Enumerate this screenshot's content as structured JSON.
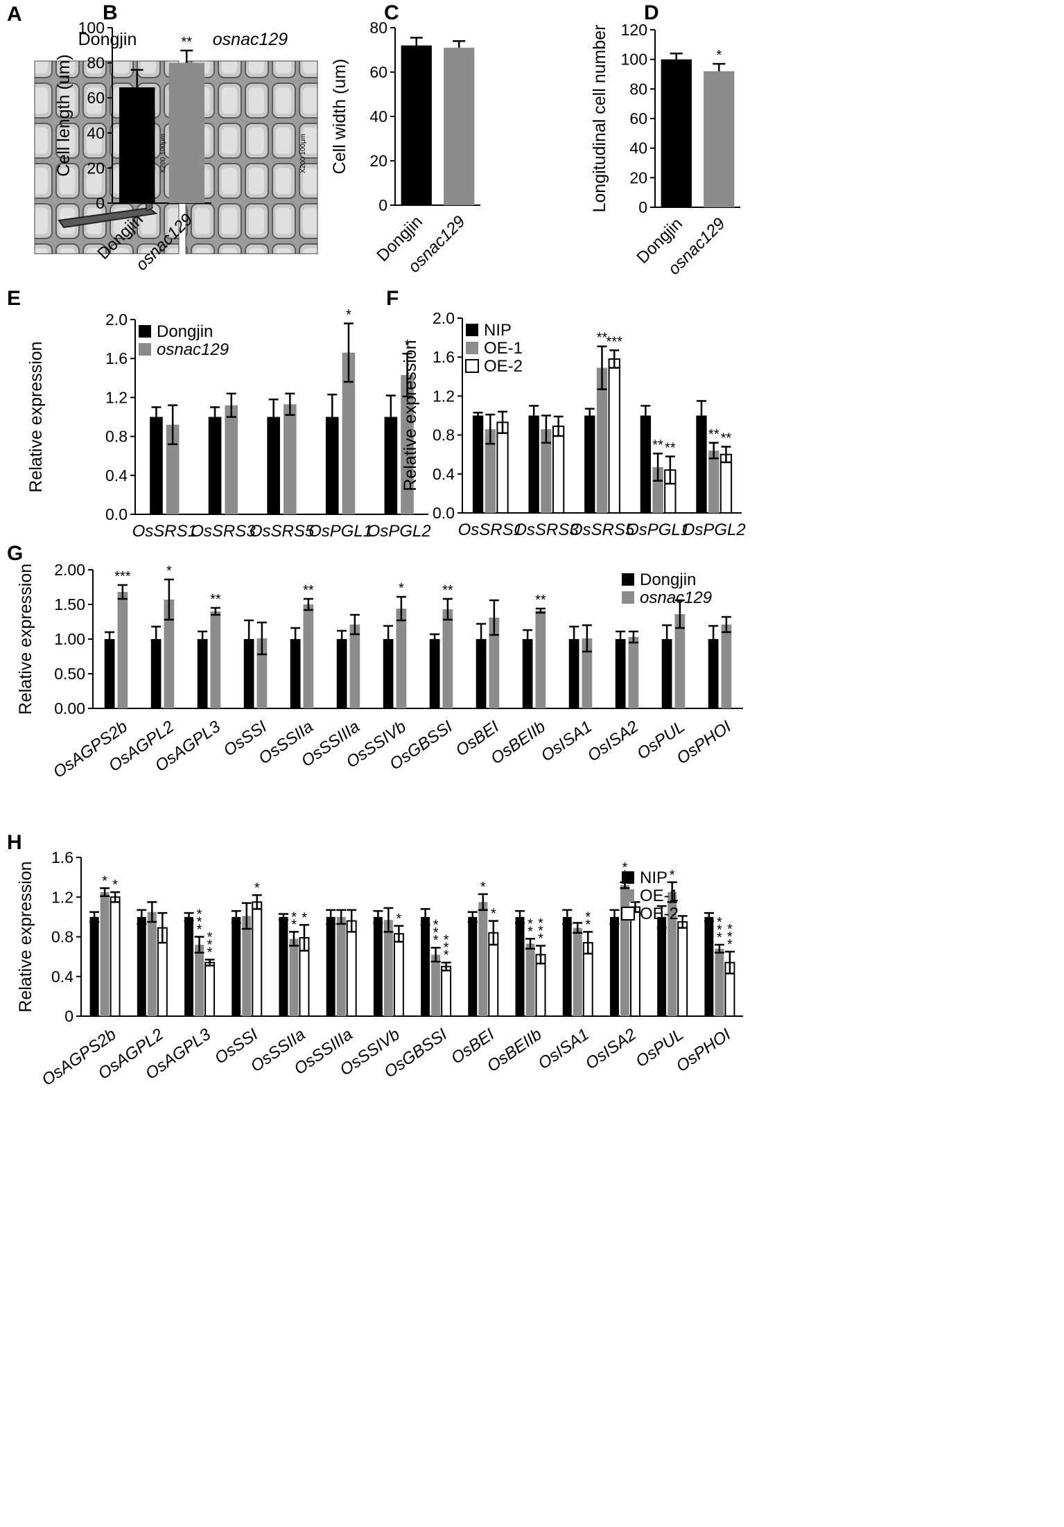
{
  "colors": {
    "primary": "#000000",
    "secondary": "#8c8c8c",
    "tertiary": "#ffffff",
    "sem_bg": "#8a8a8a"
  },
  "panel_a": {
    "label": "A",
    "left_title": "Dongjin",
    "right_title": "osnac129",
    "scale_text_left": "X200 100μm",
    "scale_text_right": "X200 100μm"
  },
  "chart_data": [
    {
      "id": "B",
      "label": "B",
      "type": "bar",
      "categories": [
        "Dongjin",
        "osnac129"
      ],
      "category_italic": [
        false,
        true
      ],
      "values": [
        66,
        80
      ],
      "errors": [
        10,
        7
      ],
      "stars": [
        "",
        "**"
      ],
      "ylabel": "Cell length (um)",
      "ylim": [
        0,
        100
      ],
      "ticks": [
        0,
        20,
        40,
        60,
        80,
        100
      ]
    },
    {
      "id": "C",
      "label": "C",
      "type": "bar",
      "categories": [
        "Dongjin",
        "osnac129"
      ],
      "category_italic": [
        false,
        true
      ],
      "values": [
        72,
        71
      ],
      "errors": [
        3.5,
        3
      ],
      "stars": [
        "",
        ""
      ],
      "ylabel": "Cell width (um)",
      "ylim": [
        0,
        80
      ],
      "ticks": [
        0,
        20,
        40,
        60,
        80
      ]
    },
    {
      "id": "D",
      "label": "D",
      "type": "bar",
      "categories": [
        "Dongjin",
        "osnac129"
      ],
      "category_italic": [
        false,
        true
      ],
      "values": [
        100,
        92
      ],
      "errors": [
        4,
        5
      ],
      "stars": [
        "",
        "*"
      ],
      "ylabel": "Longitudinal cell number",
      "ylim": [
        0,
        120
      ],
      "ticks": [
        0,
        20,
        40,
        60,
        80,
        100,
        120
      ]
    },
    {
      "id": "E",
      "label": "E",
      "type": "bar",
      "categories": [
        "OsSRS1",
        "OsSRS3",
        "OsSRS5",
        "OsPGL1",
        "OsPGL2"
      ],
      "series": [
        {
          "name": "Dongjin",
          "values": [
            1.0,
            1.0,
            1.0,
            1.0,
            1.0
          ],
          "errors": [
            0.1,
            0.1,
            0.18,
            0.23,
            0.22
          ],
          "stars": [
            "",
            "",
            "",
            "",
            ""
          ]
        },
        {
          "name": "osnac129",
          "values": [
            0.92,
            1.12,
            1.13,
            1.66,
            1.43
          ],
          "errors": [
            0.2,
            0.12,
            0.11,
            0.3,
            0.22
          ],
          "stars": [
            "",
            "",
            "",
            "*",
            "*"
          ]
        }
      ],
      "ylabel": "Relative expression",
      "ylim": [
        0,
        2.0
      ],
      "ticks": [
        "0.0",
        "0.4",
        "0.8",
        "1.2",
        "1.6",
        "2.0"
      ],
      "legend": "top-left"
    },
    {
      "id": "F",
      "label": "F",
      "type": "bar",
      "categories": [
        "OsSRS1",
        "OsSRS3",
        "OsSRS5",
        "OsPGL1",
        "OsPGL2"
      ],
      "series": [
        {
          "name": "NIP",
          "values": [
            1.0,
            1.0,
            1.0,
            1.0,
            1.0
          ],
          "errors": [
            0.03,
            0.1,
            0.07,
            0.1,
            0.15
          ],
          "stars": [
            "",
            "",
            "",
            "",
            ""
          ]
        },
        {
          "name": "OE-1",
          "values": [
            0.86,
            0.86,
            1.49,
            0.47,
            0.64
          ],
          "errors": [
            0.15,
            0.14,
            0.22,
            0.14,
            0.08
          ],
          "stars": [
            "",
            "",
            "**",
            "**",
            "**"
          ]
        },
        {
          "name": "OE-2",
          "values": [
            0.93,
            0.89,
            1.58,
            0.44,
            0.6
          ],
          "errors": [
            0.11,
            0.1,
            0.09,
            0.14,
            0.08
          ],
          "stars": [
            "",
            "",
            "***",
            "**",
            "**"
          ]
        }
      ],
      "ylabel": "Relative expression",
      "ylim": [
        0,
        2.0
      ],
      "ticks": [
        "0.0",
        "0.4",
        "0.8",
        "1.2",
        "1.6",
        "2.0"
      ],
      "legend": "top-left"
    },
    {
      "id": "G",
      "label": "G",
      "type": "bar",
      "categories": [
        "OsAGPS2b",
        "OsAGPL2",
        "OsAGPL3",
        "OsSSI",
        "OsSSIIa",
        "OsSSIIIa",
        "OsSSIVb",
        "OsGBSSI",
        "OsBEI",
        "OsBEIIb",
        "OsISA1",
        "OsISA2",
        "OsPUL",
        "OsPHOI"
      ],
      "series": [
        {
          "name": "Dongjin",
          "values": [
            1,
            1,
            1,
            1,
            1,
            1,
            1,
            1,
            1,
            1,
            1,
            1,
            1,
            1
          ],
          "errors": [
            0.1,
            0.18,
            0.11,
            0.27,
            0.16,
            0.12,
            0.19,
            0.07,
            0.22,
            0.13,
            0.18,
            0.11,
            0.2,
            0.19
          ],
          "stars": [
            "",
            "",
            "",
            "",
            "",
            "",
            "",
            "",
            "",
            "",
            "",
            "",
            "",
            ""
          ]
        },
        {
          "name": "osnac129",
          "values": [
            1.68,
            1.57,
            1.4,
            1.01,
            1.5,
            1.21,
            1.44,
            1.43,
            1.31,
            1.41,
            1.01,
            1.03,
            1.36,
            1.21
          ],
          "errors": [
            0.1,
            0.29,
            0.05,
            0.23,
            0.08,
            0.14,
            0.17,
            0.15,
            0.25,
            0.03,
            0.19,
            0.08,
            0.2,
            0.11
          ],
          "stars": [
            "***",
            "*",
            "**",
            "",
            "**",
            "",
            "*",
            "**",
            "",
            "**",
            "",
            "",
            "",
            ""
          ]
        }
      ],
      "ylabel": "Relative expression",
      "ylim": [
        0,
        2.0
      ],
      "ticks": [
        "0.00",
        "0.50",
        "1.00",
        "1.50",
        "2.00"
      ],
      "legend": "top-right"
    },
    {
      "id": "H",
      "label": "H",
      "type": "bar",
      "categories": [
        "OsAGPS2b",
        "OsAGPL2",
        "OsAGPL3",
        "OsSSI",
        "OsSSIIa",
        "OsSSIIIa",
        "OsSSIVb",
        "OsGBSSI",
        "OsBEI",
        "OsBEIIb",
        "OsISA1",
        "OsISA2",
        "OsPUL",
        "OsPHOI"
      ],
      "series": [
        {
          "name": "NIP",
          "values": [
            1,
            1,
            1,
            1,
            1,
            1,
            1,
            1,
            1,
            1,
            1,
            1,
            1,
            1
          ],
          "errors": [
            0.05,
            0.07,
            0.04,
            0.06,
            0.03,
            0.07,
            0.06,
            0.08,
            0.05,
            0.06,
            0.07,
            0.07,
            0.11,
            0.04
          ],
          "stars": [
            "",
            "",
            "",
            "",
            "",
            "",
            "",
            "",
            "",
            "",
            "",
            "",
            "",
            ""
          ]
        },
        {
          "name": "OE-1",
          "values": [
            1.25,
            1.05,
            0.72,
            1.01,
            0.78,
            1.0,
            0.97,
            0.62,
            1.15,
            0.73,
            0.89,
            1.32,
            1.25,
            0.68
          ],
          "errors": [
            0.04,
            0.1,
            0.08,
            0.13,
            0.07,
            0.07,
            0.12,
            0.07,
            0.08,
            0.05,
            0.05,
            0.03,
            0.1,
            0.04
          ],
          "stars": [
            "*",
            "",
            "***",
            "",
            "**",
            "",
            "",
            "***",
            "*",
            "**",
            "",
            "**",
            "*",
            "***"
          ]
        },
        {
          "name": "OE-2",
          "values": [
            1.2,
            0.89,
            0.54,
            1.15,
            0.79,
            0.96,
            0.83,
            0.5,
            0.84,
            0.62,
            0.74,
            1.1,
            0.95,
            0.54
          ],
          "errors": [
            0.05,
            0.15,
            0.03,
            0.07,
            0.13,
            0.11,
            0.08,
            0.04,
            0.12,
            0.09,
            0.11,
            0.05,
            0.06,
            0.11
          ],
          "stars": [
            "*",
            "",
            "***",
            "*",
            "*",
            "",
            "*",
            "***",
            "*",
            "***",
            "**",
            "",
            "",
            "***"
          ]
        }
      ],
      "ylabel": "Relative expression",
      "ylim": [
        0,
        1.6
      ],
      "ticks": [
        "0",
        "0.4",
        "0.8",
        "1.2",
        "1.6"
      ],
      "legend": "top-right"
    }
  ]
}
